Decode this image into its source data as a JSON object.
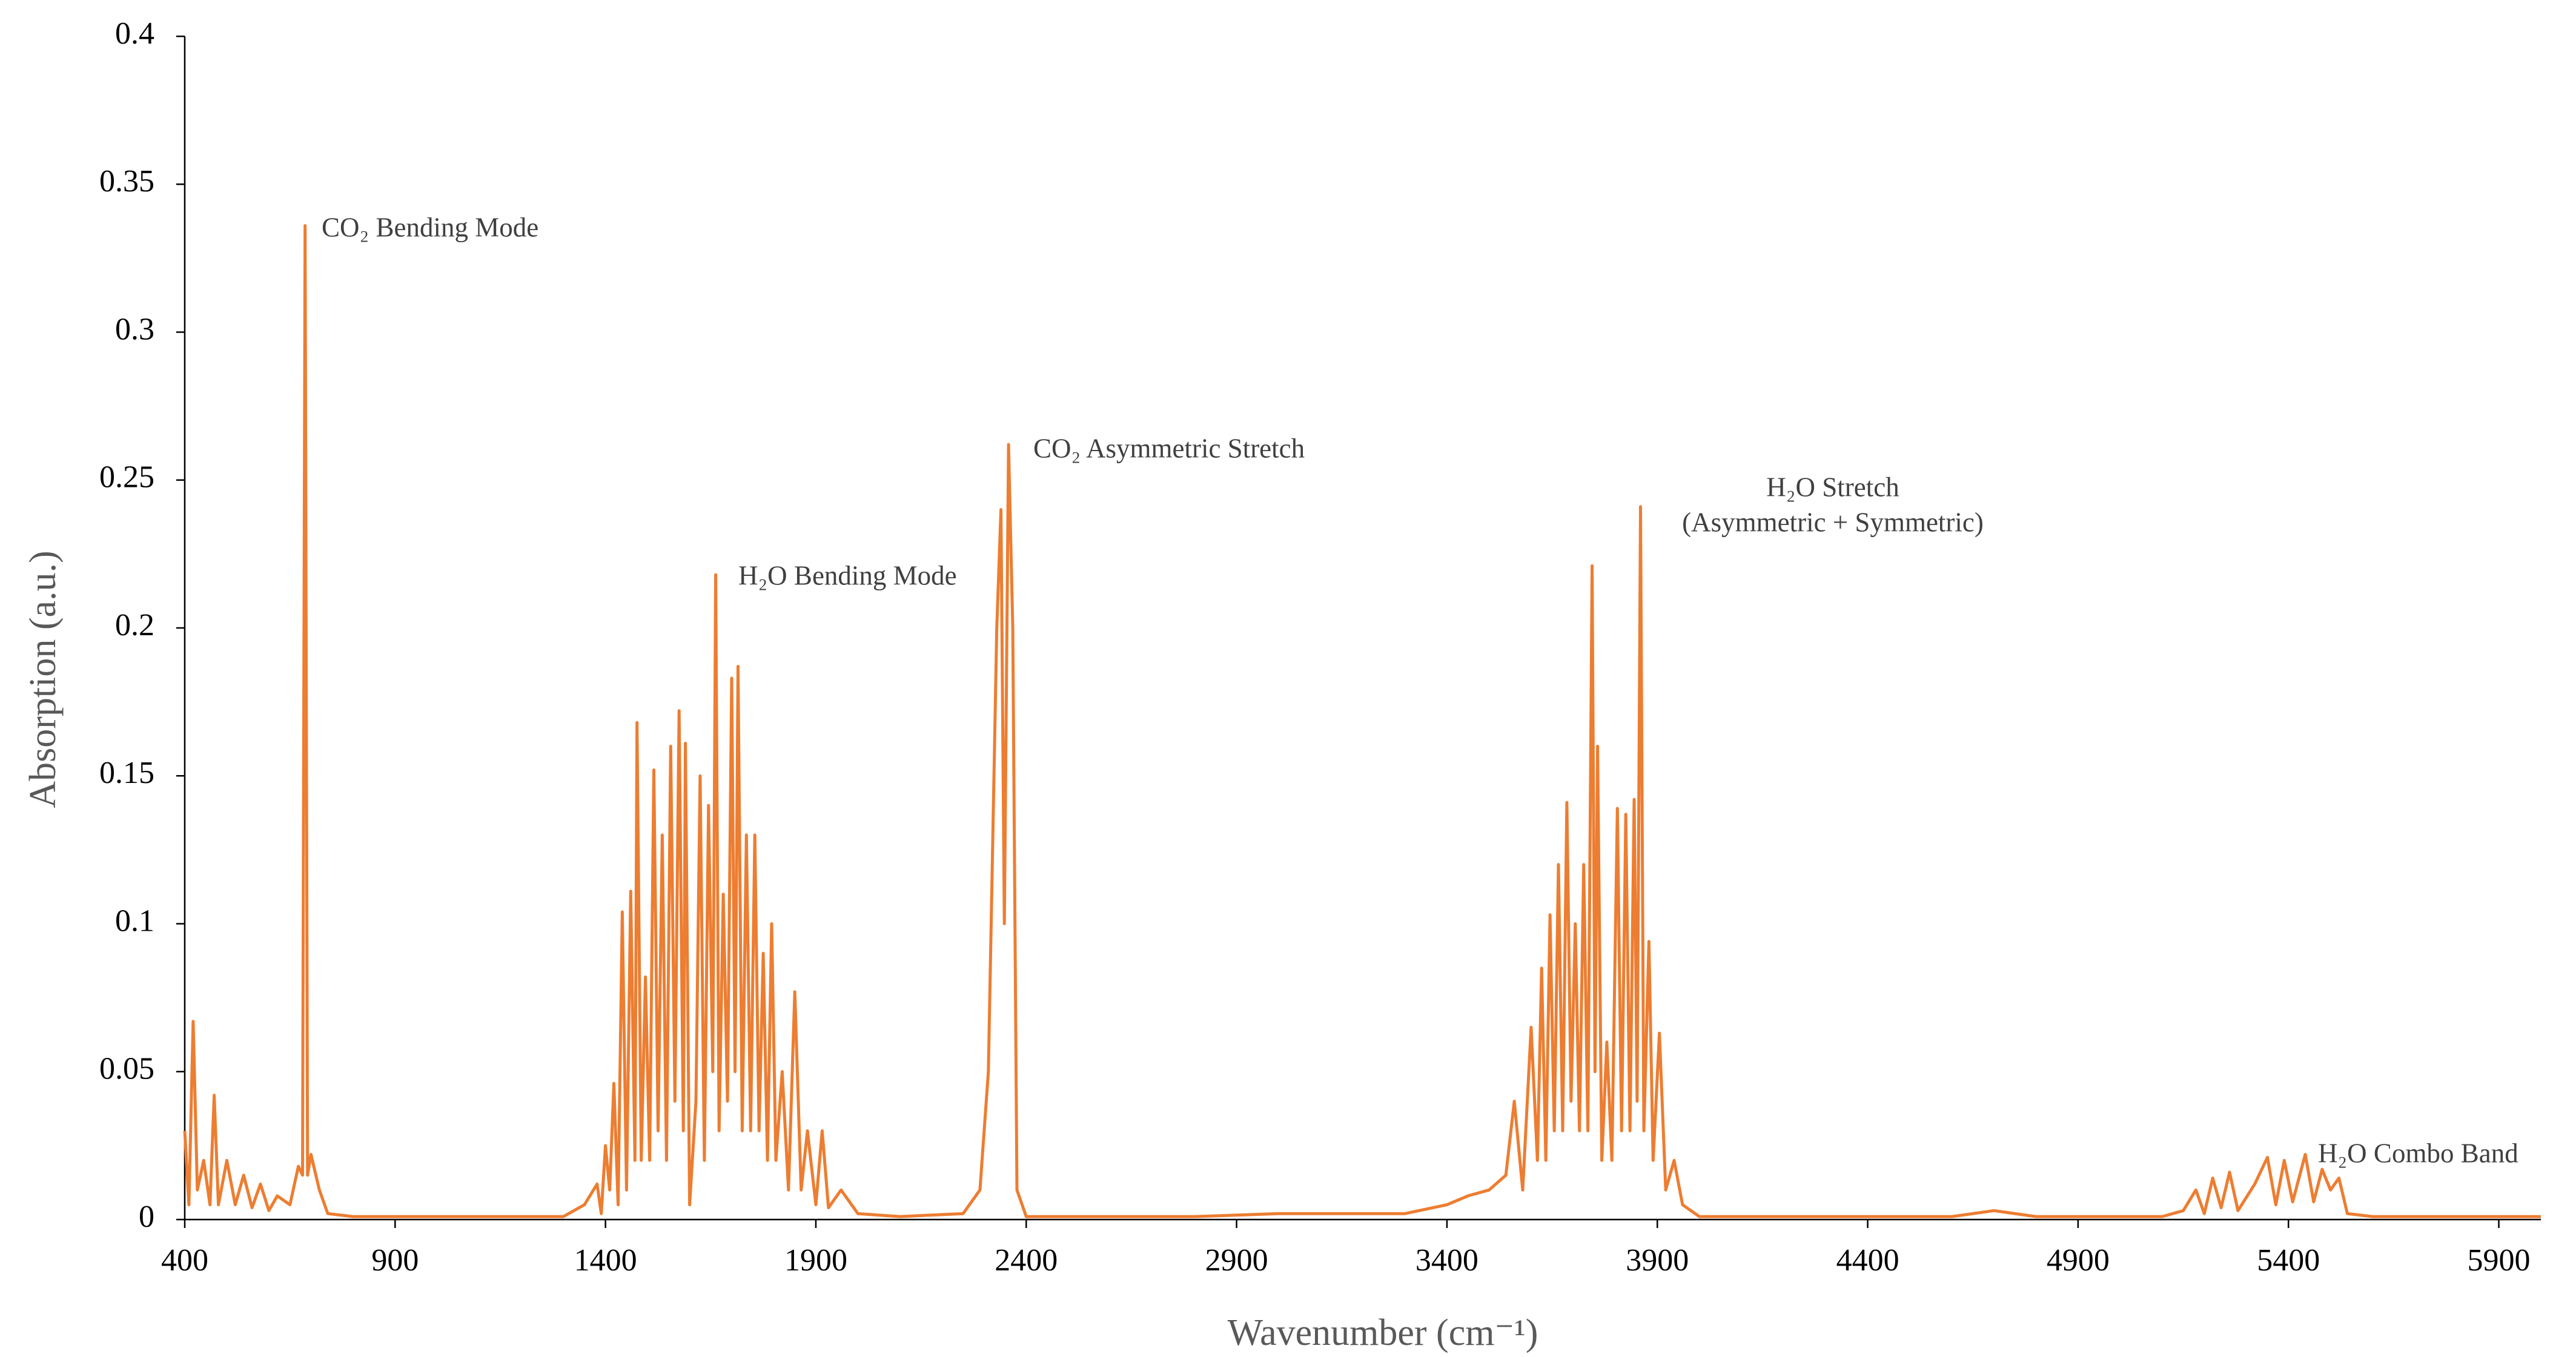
{
  "chart_data": {
    "type": "line",
    "xlabel": "Wavenumber (cm⁻¹)",
    "ylabel": "Absorption (a.u.)",
    "xlim": [
      400,
      6000
    ],
    "xticks": [
      400,
      900,
      1400,
      1900,
      2400,
      2900,
      3400,
      3900,
      4400,
      4900,
      5400,
      5900
    ],
    "ylim": [
      0,
      0.4
    ],
    "yticks": [
      0,
      0.05,
      0.1,
      0.15,
      0.2,
      0.25,
      0.3,
      0.35,
      0.4
    ],
    "grid": false,
    "annotations": [
      "CO₂ Bending Mode",
      "H₂O Bending Mode",
      "CO₂ Asymmetric Stretch",
      "H₂O Stretch",
      "(Asymmetric + Symmetric)",
      "H₂O Combo Band"
    ],
    "series": [
      {
        "color": "#ED7D31",
        "x": [
          400,
          410,
          420,
          430,
          445,
          460,
          470,
          480,
          500,
          520,
          540,
          560,
          580,
          600,
          620,
          650,
          670,
          680,
          686,
          692,
          700,
          720,
          740,
          800,
          1000,
          1200,
          1300,
          1350,
          1380,
          1390,
          1400,
          1410,
          1420,
          1430,
          1440,
          1450,
          1460,
          1470,
          1475,
          1485,
          1495,
          1505,
          1515,
          1525,
          1535,
          1545,
          1555,
          1565,
          1575,
          1585,
          1590,
          1600,
          1615,
          1625,
          1635,
          1645,
          1655,
          1662,
          1670,
          1680,
          1690,
          1700,
          1708,
          1715,
          1725,
          1735,
          1745,
          1755,
          1765,
          1775,
          1785,
          1795,
          1805,
          1820,
          1835,
          1850,
          1865,
          1880,
          1900,
          1915,
          1930,
          1960,
          2000,
          2100,
          2250,
          2290,
          2310,
          2330,
          2340,
          2348,
          2358,
          2368,
          2378,
          2400,
          2800,
          3000,
          3300,
          3400,
          3450,
          3500,
          3540,
          3560,
          3580,
          3600,
          3615,
          3625,
          3635,
          3645,
          3655,
          3665,
          3675,
          3685,
          3695,
          3705,
          3715,
          3725,
          3735,
          3745,
          3752,
          3758,
          3768,
          3780,
          3792,
          3805,
          3815,
          3825,
          3835,
          3845,
          3852,
          3860,
          3868,
          3880,
          3890,
          3905,
          3920,
          3940,
          3960,
          4000,
          4600,
          4700,
          4800,
          5100,
          5150,
          5180,
          5200,
          5220,
          5240,
          5260,
          5280,
          5320,
          5350,
          5370,
          5390,
          5410,
          5440,
          5460,
          5480,
          5500,
          5520,
          5540,
          5600,
          6000
        ],
        "values": [
          0.03,
          0.005,
          0.067,
          0.01,
          0.02,
          0.005,
          0.042,
          0.005,
          0.02,
          0.005,
          0.015,
          0.004,
          0.012,
          0.003,
          0.008,
          0.005,
          0.018,
          0.015,
          0.336,
          0.015,
          0.022,
          0.01,
          0.002,
          0.001,
          0.001,
          0.001,
          0.001,
          0.005,
          0.012,
          0.002,
          0.025,
          0.01,
          0.046,
          0.005,
          0.104,
          0.01,
          0.111,
          0.02,
          0.168,
          0.02,
          0.082,
          0.02,
          0.152,
          0.03,
          0.13,
          0.02,
          0.16,
          0.04,
          0.172,
          0.03,
          0.161,
          0.005,
          0.04,
          0.15,
          0.02,
          0.14,
          0.05,
          0.218,
          0.03,
          0.11,
          0.04,
          0.183,
          0.05,
          0.187,
          0.03,
          0.13,
          0.03,
          0.13,
          0.03,
          0.09,
          0.02,
          0.1,
          0.02,
          0.05,
          0.01,
          0.077,
          0.01,
          0.03,
          0.005,
          0.03,
          0.004,
          0.01,
          0.002,
          0.001,
          0.002,
          0.01,
          0.05,
          0.2,
          0.24,
          0.1,
          0.262,
          0.2,
          0.01,
          0.001,
          0.001,
          0.002,
          0.002,
          0.005,
          0.008,
          0.01,
          0.015,
          0.04,
          0.01,
          0.065,
          0.02,
          0.085,
          0.02,
          0.103,
          0.03,
          0.12,
          0.03,
          0.141,
          0.04,
          0.1,
          0.03,
          0.12,
          0.03,
          0.221,
          0.05,
          0.16,
          0.02,
          0.06,
          0.02,
          0.139,
          0.03,
          0.137,
          0.03,
          0.142,
          0.04,
          0.241,
          0.03,
          0.094,
          0.02,
          0.063,
          0.01,
          0.02,
          0.005,
          0.001,
          0.001,
          0.003,
          0.001,
          0.001,
          0.003,
          0.01,
          0.002,
          0.014,
          0.004,
          0.016,
          0.003,
          0.012,
          0.021,
          0.005,
          0.02,
          0.006,
          0.022,
          0.006,
          0.017,
          0.01,
          0.014,
          0.002,
          0.001,
          0.001
        ]
      }
    ]
  }
}
